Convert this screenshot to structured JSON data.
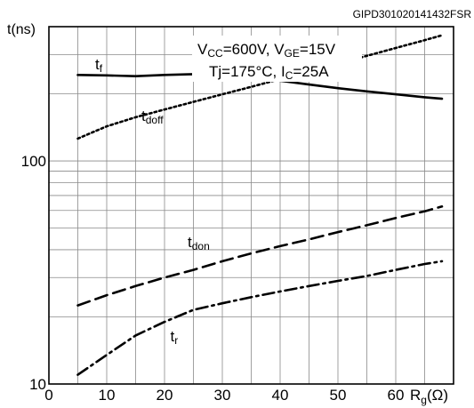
{
  "chart_data": {
    "type": "line",
    "figure_id": "GIPD301020141432FSR",
    "ylabel": "t(ns)",
    "xlabel": {
      "main": "R",
      "sub": "g",
      "unit": "(Ω)"
    },
    "xlim": [
      0,
      70
    ],
    "ylim": [
      10,
      400
    ],
    "yscale": "log",
    "x_ticks": [
      "0",
      "10",
      "20",
      "30",
      "40",
      "50",
      "60"
    ],
    "y_ticks": [
      "10",
      "100"
    ],
    "conditions": [
      {
        "parts": [
          {
            "t": "V",
            "sub": false
          },
          {
            "t": "CC",
            "sub": true
          },
          {
            "t": "=600V, V",
            "sub": false
          },
          {
            "t": "GE",
            "sub": true
          },
          {
            "t": "=15V",
            "sub": false
          }
        ]
      },
      {
        "parts": [
          {
            "t": "Tj=175°C, I",
            "sub": false
          },
          {
            "t": "C",
            "sub": true
          },
          {
            "t": "=25A",
            "sub": false
          }
        ]
      }
    ],
    "series": [
      {
        "name": "tf",
        "main": "t",
        "sub": "f",
        "style": "solid",
        "x": [
          5,
          10,
          15,
          20,
          25,
          30,
          35,
          40,
          45,
          50,
          55,
          60,
          65,
          68
        ],
        "y": [
          243,
          242,
          240,
          243,
          245,
          243,
          237,
          229,
          220,
          212,
          205,
          199,
          193,
          190
        ]
      },
      {
        "name": "tdoff",
        "main": "t",
        "sub": "doff",
        "style": "dotted",
        "x": [
          5,
          10,
          15,
          20,
          25,
          30,
          35,
          40,
          45,
          50,
          55,
          60,
          65,
          68
        ],
        "y": [
          126,
          143,
          157,
          170,
          184,
          199,
          215,
          233,
          252,
          273,
          296,
          321,
          348,
          366
        ]
      },
      {
        "name": "tdon",
        "main": "t",
        "sub": "don",
        "style": "dashed",
        "x": [
          5,
          10,
          15,
          20,
          25,
          30,
          35,
          40,
          45,
          50,
          55,
          60,
          65,
          68
        ],
        "y": [
          22.5,
          25,
          27.5,
          30,
          32.5,
          35.5,
          38.5,
          41.5,
          44.5,
          48,
          51.5,
          55.5,
          59.5,
          62.5
        ]
      },
      {
        "name": "tr",
        "main": "t",
        "sub": "r",
        "style": "dashdot",
        "x": [
          5,
          10,
          15,
          20,
          25,
          30,
          35,
          40,
          45,
          50,
          55,
          60,
          65,
          68
        ],
        "y": [
          11,
          13.5,
          16.5,
          19,
          21.5,
          23,
          24.5,
          26,
          27.5,
          29,
          30.5,
          32.5,
          34.5,
          35.5
        ]
      }
    ]
  }
}
